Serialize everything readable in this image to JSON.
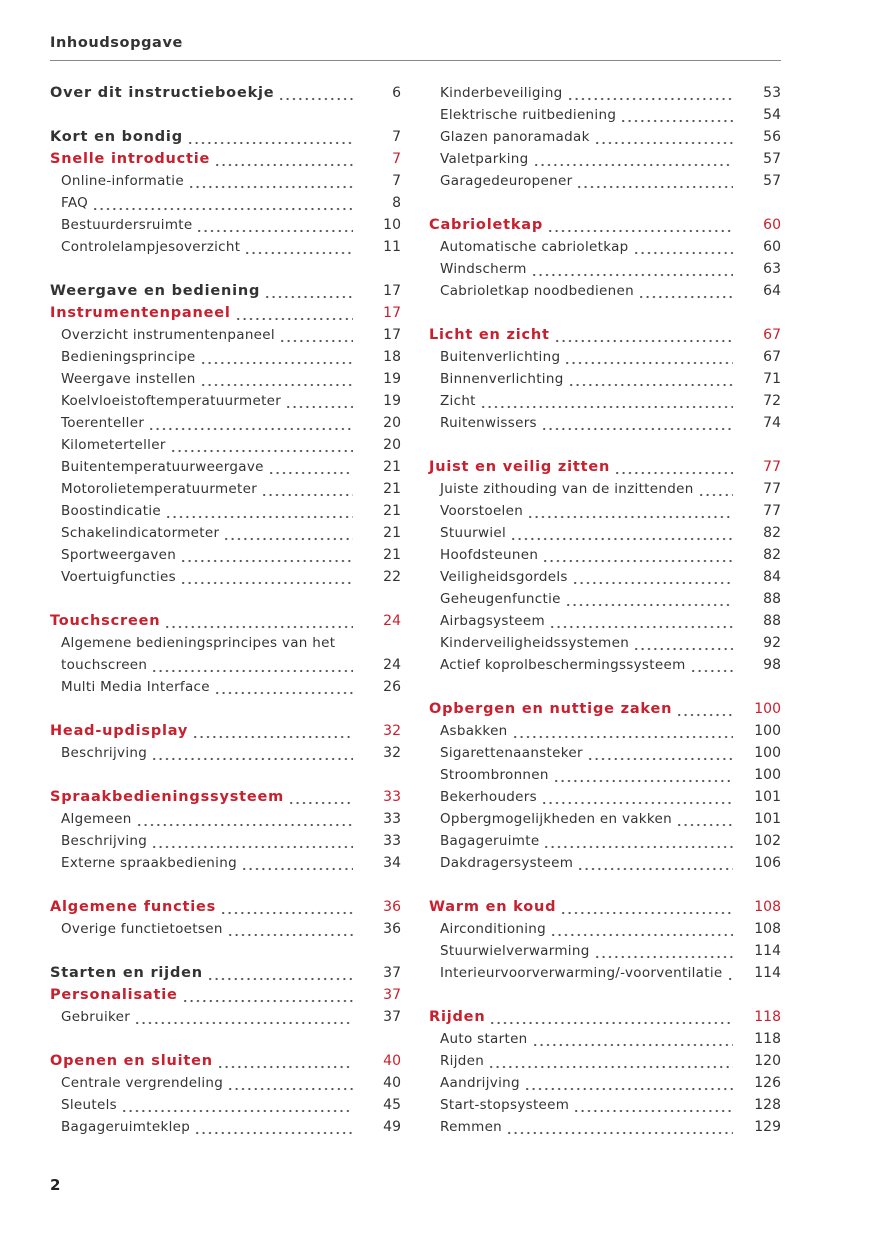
{
  "header": {
    "title": "Inhoudsopgave"
  },
  "page_number": "2",
  "accent_color": "#c8202e",
  "left": [
    [
      {
        "k": "h",
        "t": "Over dit instructieboekje",
        "p": "6"
      }
    ],
    [
      {
        "k": "h",
        "t": "Kort en bondig",
        "p": "7"
      },
      {
        "k": "r",
        "t": "Snelle introductie",
        "p": "7"
      },
      {
        "k": "s",
        "t": "Online-informatie",
        "p": "7"
      },
      {
        "k": "s",
        "t": "FAQ",
        "p": "8"
      },
      {
        "k": "s",
        "t": "Bestuurdersruimte",
        "p": "10"
      },
      {
        "k": "s",
        "t": "Controlelampjesoverzicht",
        "p": "11"
      }
    ],
    [
      {
        "k": "h",
        "t": "Weergave en bediening",
        "p": "17"
      },
      {
        "k": "r",
        "t": "Instrumentenpaneel",
        "p": "17"
      },
      {
        "k": "s",
        "t": "Overzicht instrumentenpaneel",
        "p": "17"
      },
      {
        "k": "s",
        "t": "Bedieningsprincipe",
        "p": "18"
      },
      {
        "k": "s",
        "t": "Weergave instellen",
        "p": "19"
      },
      {
        "k": "s",
        "t": "Koelvloeistoftemperatuurmeter",
        "p": "19"
      },
      {
        "k": "s",
        "t": "Toerenteller",
        "p": "20"
      },
      {
        "k": "s",
        "t": "Kilometerteller",
        "p": "20"
      },
      {
        "k": "s",
        "t": "Buitentemperatuurweergave",
        "p": "21"
      },
      {
        "k": "s",
        "t": "Motorolietemperatuurmeter",
        "p": "21"
      },
      {
        "k": "s",
        "t": "Boostindicatie",
        "p": "21"
      },
      {
        "k": "s",
        "t": "Schakelindicatormeter",
        "p": "21"
      },
      {
        "k": "s",
        "t": "Sportweergaven",
        "p": "21"
      },
      {
        "k": "s",
        "t": "Voertuigfuncties",
        "p": "22"
      }
    ],
    [
      {
        "k": "r",
        "t": "Touchscreen",
        "p": "24"
      },
      {
        "k": "s",
        "t": "Algemene bedieningsprincipes van het"
      },
      {
        "k": "s",
        "t": "touchscreen",
        "p": "24"
      },
      {
        "k": "s",
        "t": "Multi Media Interface",
        "p": "26"
      }
    ],
    [
      {
        "k": "r",
        "t": "Head-updisplay",
        "p": "32"
      },
      {
        "k": "s",
        "t": "Beschrijving",
        "p": "32"
      }
    ],
    [
      {
        "k": "r",
        "t": "Spraakbedieningssysteem",
        "p": "33"
      },
      {
        "k": "s",
        "t": "Algemeen",
        "p": "33"
      },
      {
        "k": "s",
        "t": "Beschrijving",
        "p": "33"
      },
      {
        "k": "s",
        "t": "Externe spraakbediening",
        "p": "34"
      }
    ],
    [
      {
        "k": "r",
        "t": "Algemene functies",
        "p": "36"
      },
      {
        "k": "s",
        "t": "Overige functietoetsen",
        "p": "36"
      }
    ],
    [
      {
        "k": "h",
        "t": "Starten en rijden",
        "p": "37"
      },
      {
        "k": "r",
        "t": "Personalisatie",
        "p": "37"
      },
      {
        "k": "s",
        "t": "Gebruiker",
        "p": "37"
      }
    ],
    [
      {
        "k": "r",
        "t": "Openen en sluiten",
        "p": "40"
      },
      {
        "k": "s",
        "t": "Centrale vergrendeling",
        "p": "40"
      },
      {
        "k": "s",
        "t": "Sleutels",
        "p": "45"
      },
      {
        "k": "s",
        "t": "Bagageruimteklep",
        "p": "49"
      }
    ]
  ],
  "right": [
    [
      {
        "k": "s",
        "t": "Kinderbeveiliging",
        "p": "53"
      },
      {
        "k": "s",
        "t": "Elektrische ruitbediening",
        "p": "54"
      },
      {
        "k": "s",
        "t": "Glazen panoramadak",
        "p": "56"
      },
      {
        "k": "s",
        "t": "Valetparking",
        "p": "57"
      },
      {
        "k": "s",
        "t": "Garagedeuropener",
        "p": "57"
      }
    ],
    [
      {
        "k": "r",
        "t": "Cabrioletkap",
        "p": "60"
      },
      {
        "k": "s",
        "t": "Automatische cabrioletkap",
        "p": "60"
      },
      {
        "k": "s",
        "t": "Windscherm",
        "p": "63"
      },
      {
        "k": "s",
        "t": "Cabrioletkap noodbedienen",
        "p": "64"
      }
    ],
    [
      {
        "k": "r",
        "t": "Licht en zicht",
        "p": "67"
      },
      {
        "k": "s",
        "t": "Buitenverlichting",
        "p": "67"
      },
      {
        "k": "s",
        "t": "Binnenverlichting",
        "p": "71"
      },
      {
        "k": "s",
        "t": "Zicht",
        "p": "72"
      },
      {
        "k": "s",
        "t": "Ruitenwissers",
        "p": "74"
      }
    ],
    [
      {
        "k": "r",
        "t": "Juist en veilig zitten",
        "p": "77"
      },
      {
        "k": "s",
        "t": "Juiste zithouding van de inzittenden",
        "p": "77"
      },
      {
        "k": "s",
        "t": "Voorstoelen",
        "p": "77"
      },
      {
        "k": "s",
        "t": "Stuurwiel",
        "p": "82"
      },
      {
        "k": "s",
        "t": "Hoofdsteunen",
        "p": "82"
      },
      {
        "k": "s",
        "t": "Veiligheidsgordels",
        "p": "84"
      },
      {
        "k": "s",
        "t": "Geheugenfunctie",
        "p": "88"
      },
      {
        "k": "s",
        "t": "Airbagsysteem",
        "p": "88"
      },
      {
        "k": "s",
        "t": "Kinderveiligheidssystemen",
        "p": "92"
      },
      {
        "k": "s",
        "t": "Actief koprolbeschermingssysteem",
        "p": "98"
      }
    ],
    [
      {
        "k": "r",
        "t": "Opbergen en nuttige zaken",
        "p": "100"
      },
      {
        "k": "s",
        "t": "Asbakken",
        "p": "100"
      },
      {
        "k": "s",
        "t": "Sigarettenaansteker",
        "p": "100"
      },
      {
        "k": "s",
        "t": "Stroombronnen",
        "p": "100"
      },
      {
        "k": "s",
        "t": "Bekerhouders",
        "p": "101"
      },
      {
        "k": "s",
        "t": "Opbergmogelijkheden en vakken",
        "p": "101"
      },
      {
        "k": "s",
        "t": "Bagageruimte",
        "p": "102"
      },
      {
        "k": "s",
        "t": "Dakdragersysteem",
        "p": "106"
      }
    ],
    [
      {
        "k": "r",
        "t": "Warm en koud",
        "p": "108"
      },
      {
        "k": "s",
        "t": "Airconditioning",
        "p": "108"
      },
      {
        "k": "s",
        "t": "Stuurwielverwarming",
        "p": "114"
      },
      {
        "k": "s",
        "t": "Interieurvoorverwarming/-voorventilatie",
        "p": "114"
      }
    ],
    [
      {
        "k": "r",
        "t": "Rijden",
        "p": "118"
      },
      {
        "k": "s",
        "t": "Auto starten",
        "p": "118"
      },
      {
        "k": "s",
        "t": "Rijden",
        "p": "120"
      },
      {
        "k": "s",
        "t": "Aandrijving",
        "p": "126"
      },
      {
        "k": "s",
        "t": "Start-stopsysteem",
        "p": "128"
      },
      {
        "k": "s",
        "t": "Remmen",
        "p": "129"
      }
    ]
  ]
}
